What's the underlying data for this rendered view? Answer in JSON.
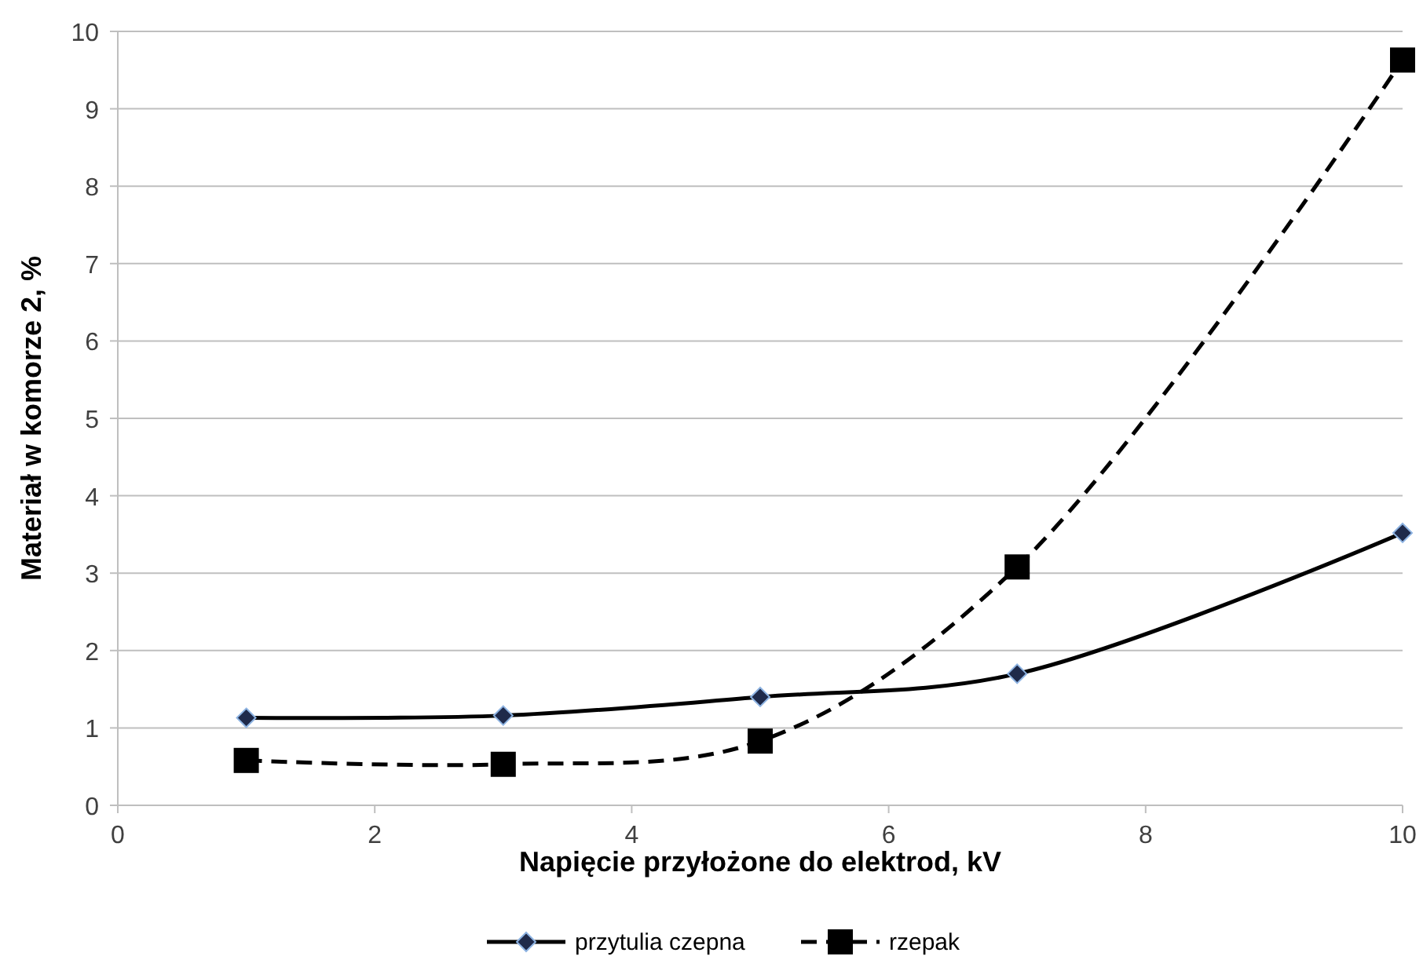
{
  "chart_data": {
    "type": "line",
    "xlabel": "Napięcie przyłożone do elektrod, kV",
    "ylabel": "Materiał w komorze 2, %",
    "xlim": [
      0,
      10
    ],
    "xticks": [
      0,
      2,
      4,
      6,
      8,
      10
    ],
    "ylim": [
      0,
      10
    ],
    "yticks": [
      0,
      1,
      2,
      3,
      4,
      5,
      6,
      7,
      8,
      9,
      10
    ],
    "grid": "y",
    "legend": "bottom",
    "series": [
      {
        "name": "przytulia czepna",
        "color": "#000000",
        "x": [
          1,
          3,
          5,
          7,
          10
        ],
        "values": [
          1.13,
          1.16,
          1.4,
          1.7,
          3.52
        ],
        "marker": "diamond",
        "line_style": "solid"
      },
      {
        "name": "rzepak",
        "color": "#000000",
        "x": [
          1,
          3,
          5,
          7,
          10
        ],
        "values": [
          0.58,
          0.53,
          0.83,
          3.08,
          9.63
        ],
        "marker": "square",
        "line_style": "dashed"
      }
    ]
  }
}
